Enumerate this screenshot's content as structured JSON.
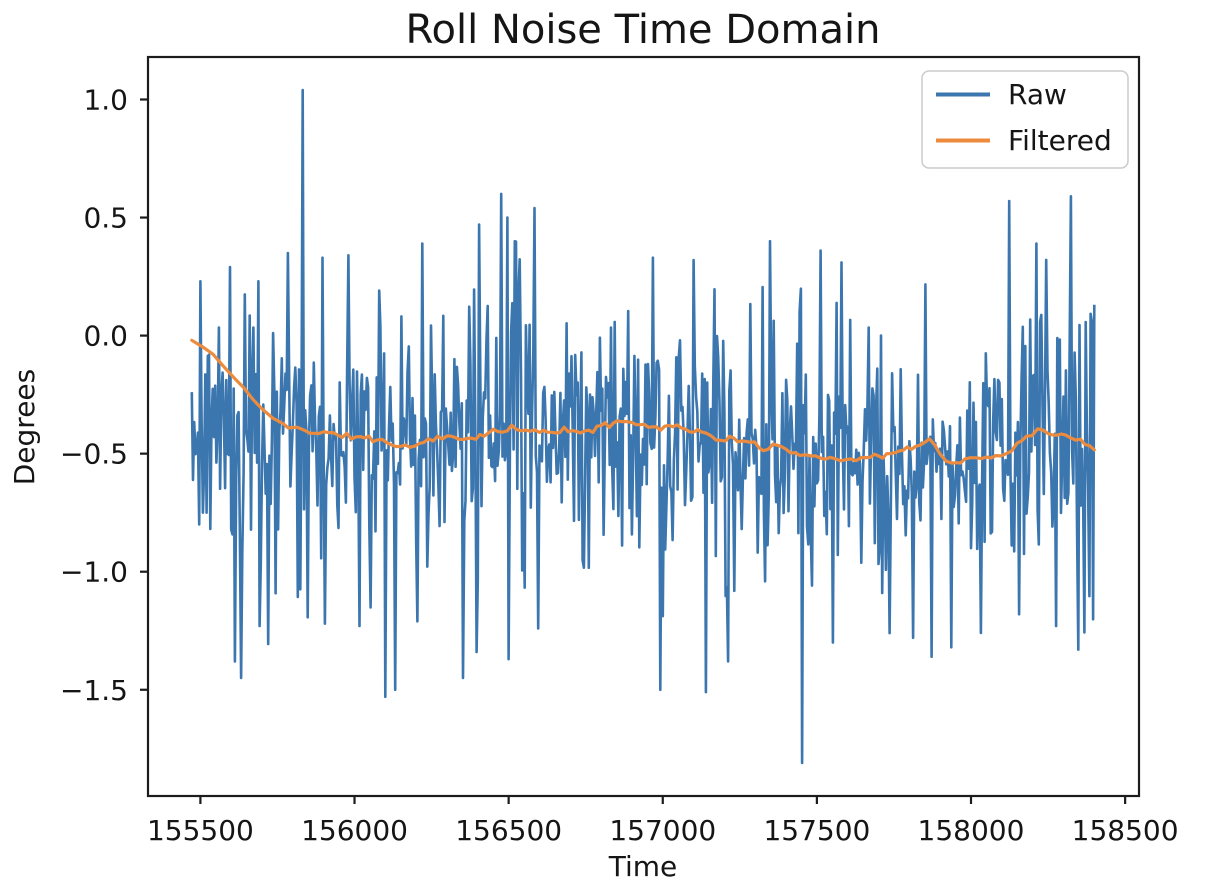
{
  "figure": {
    "background": "#ffffff",
    "text_color": "#151515",
    "spine_color": "#1c1c1c"
  },
  "chart_data": {
    "type": "line",
    "title": "Roll Noise Time Domain",
    "xlabel": "Time",
    "ylabel": "Degrees",
    "grid": false,
    "xlim": [
      155330,
      158545
    ],
    "ylim": [
      -1.95,
      1.18
    ],
    "x_ticks": [
      155500,
      156000,
      156500,
      157000,
      157500,
      158000,
      158500
    ],
    "x_tick_labels": [
      "155500",
      "156000",
      "156500",
      "157000",
      "157500",
      "158000",
      "158500"
    ],
    "y_ticks": [
      1.0,
      0.5,
      0.0,
      -0.5,
      -1.0,
      -1.5
    ],
    "y_tick_labels": [
      "1.0",
      "0.5",
      "0.0",
      "−0.5",
      "−1.0",
      "−1.5"
    ],
    "legend": {
      "position": "upper right",
      "border_color": "#cccccc",
      "background": "#ffffff",
      "entries": [
        "Raw",
        "Filtered"
      ]
    },
    "series": [
      {
        "name": "Raw",
        "color": "#3b76af",
        "style": "high-frequency noise",
        "observed_max": 1.04,
        "observed_min": -1.81,
        "mean_approx": -0.45,
        "generator": {
          "x_start": 155472,
          "x_end": 158400,
          "step": 4,
          "seed": 42,
          "seed2": 1337,
          "std": 0.34,
          "tail_prob": 0.02,
          "clamp": [
            -1.34,
            0.5
          ],
          "baseline": [
            [
              155472,
              -0.4
            ],
            [
              155700,
              -0.44
            ],
            [
              156100,
              -0.46
            ],
            [
              156500,
              -0.42
            ],
            [
              156900,
              -0.4
            ],
            [
              157300,
              -0.46
            ],
            [
              157700,
              -0.52
            ],
            [
              158050,
              -0.52
            ],
            [
              158216,
              -0.44
            ],
            [
              158400,
              -0.48
            ]
          ],
          "spikes": [
            [
              155500,
              0.23
            ],
            [
              155597,
              0.29
            ],
            [
              155610,
              -1.38
            ],
            [
              155633,
              -1.45
            ],
            [
              155687,
              0.23
            ],
            [
              155690,
              -1.23
            ],
            [
              155784,
              0.35
            ],
            [
              155832,
              1.04
            ],
            [
              155897,
              0.33
            ],
            [
              155903,
              -1.22
            ],
            [
              155980,
              0.34
            ],
            [
              156016,
              -1.23
            ],
            [
              156100,
              -1.53
            ],
            [
              156130,
              -1.5
            ],
            [
              156203,
              -1.21
            ],
            [
              156219,
              0.39
            ],
            [
              156350,
              -1.45
            ],
            [
              156403,
              0.47
            ],
            [
              156477,
              0.6
            ],
            [
              156500,
              -1.37
            ],
            [
              156519,
              0.4
            ],
            [
              156584,
              0.54
            ],
            [
              156596,
              -1.24
            ],
            [
              156968,
              0.33
            ],
            [
              156990,
              -1.5
            ],
            [
              157100,
              0.32
            ],
            [
              157139,
              -1.51
            ],
            [
              157210,
              -1.38
            ],
            [
              157348,
              0.4
            ],
            [
              157452,
              -1.81
            ],
            [
              157510,
              0.36
            ],
            [
              157552,
              -1.3
            ],
            [
              157581,
              0.31
            ],
            [
              157735,
              -1.26
            ],
            [
              157810,
              -1.28
            ],
            [
              157871,
              -1.36
            ],
            [
              157935,
              -1.32
            ],
            [
              158123,
              0.57
            ],
            [
              158155,
              -1.18
            ],
            [
              158210,
              0.39
            ],
            [
              158274,
              -1.23
            ],
            [
              158322,
              0.59
            ],
            [
              158348,
              -1.33
            ],
            [
              158392,
              0.06
            ]
          ]
        }
      },
      {
        "name": "Filtered",
        "color": "#ec8b3e",
        "style": "moving average",
        "points": [
          [
            155472,
            -0.02
          ],
          [
            155510,
            -0.05
          ],
          [
            155542,
            -0.08
          ],
          [
            155575,
            -0.13
          ],
          [
            155610,
            -0.18
          ],
          [
            155640,
            -0.22
          ],
          [
            155670,
            -0.27
          ],
          [
            155700,
            -0.31
          ],
          [
            155735,
            -0.35
          ],
          [
            155770,
            -0.38
          ],
          [
            155800,
            -0.39
          ],
          [
            155840,
            -0.4
          ],
          [
            155870,
            -0.41
          ],
          [
            155900,
            -0.41
          ],
          [
            155930,
            -0.42
          ],
          [
            155960,
            -0.42
          ],
          [
            155990,
            -0.43
          ],
          [
            156020,
            -0.43
          ],
          [
            156060,
            -0.44
          ],
          [
            156090,
            -0.44
          ],
          [
            156120,
            -0.46
          ],
          [
            156150,
            -0.47
          ],
          [
            156180,
            -0.47
          ],
          [
            156210,
            -0.46
          ],
          [
            156240,
            -0.44
          ],
          [
            156270,
            -0.43
          ],
          [
            156300,
            -0.43
          ],
          [
            156340,
            -0.44
          ],
          [
            156380,
            -0.43
          ],
          [
            156420,
            -0.42
          ],
          [
            156450,
            -0.41
          ],
          [
            156480,
            -0.41
          ],
          [
            156510,
            -0.39
          ],
          [
            156540,
            -0.4
          ],
          [
            156570,
            -0.41
          ],
          [
            156600,
            -0.4
          ],
          [
            156640,
            -0.41
          ],
          [
            156680,
            -0.4
          ],
          [
            156720,
            -0.41
          ],
          [
            156760,
            -0.4
          ],
          [
            156800,
            -0.39
          ],
          [
            156840,
            -0.37
          ],
          [
            156865,
            -0.35
          ],
          [
            156900,
            -0.37
          ],
          [
            156940,
            -0.38
          ],
          [
            156980,
            -0.39
          ],
          [
            157020,
            -0.38
          ],
          [
            157060,
            -0.39
          ],
          [
            157100,
            -0.4
          ],
          [
            157140,
            -0.42
          ],
          [
            157190,
            -0.44
          ],
          [
            157230,
            -0.44
          ],
          [
            157270,
            -0.45
          ],
          [
            157326,
            -0.48
          ],
          [
            157358,
            -0.46
          ],
          [
            157400,
            -0.48
          ],
          [
            157445,
            -0.5
          ],
          [
            157480,
            -0.51
          ],
          [
            157510,
            -0.52
          ],
          [
            157560,
            -0.52
          ],
          [
            157610,
            -0.52
          ],
          [
            157660,
            -0.52
          ],
          [
            157700,
            -0.51
          ],
          [
            157740,
            -0.5
          ],
          [
            157780,
            -0.49
          ],
          [
            157820,
            -0.47
          ],
          [
            157865,
            -0.44
          ],
          [
            157900,
            -0.5
          ],
          [
            157939,
            -0.54
          ],
          [
            157980,
            -0.53
          ],
          [
            158035,
            -0.52
          ],
          [
            158080,
            -0.51
          ],
          [
            158113,
            -0.5
          ],
          [
            158150,
            -0.46
          ],
          [
            158180,
            -0.42
          ],
          [
            158216,
            -0.4
          ],
          [
            158250,
            -0.41
          ],
          [
            158280,
            -0.42
          ],
          [
            158306,
            -0.43
          ],
          [
            158340,
            -0.43
          ],
          [
            158370,
            -0.45
          ],
          [
            158400,
            -0.48
          ]
        ]
      }
    ]
  }
}
